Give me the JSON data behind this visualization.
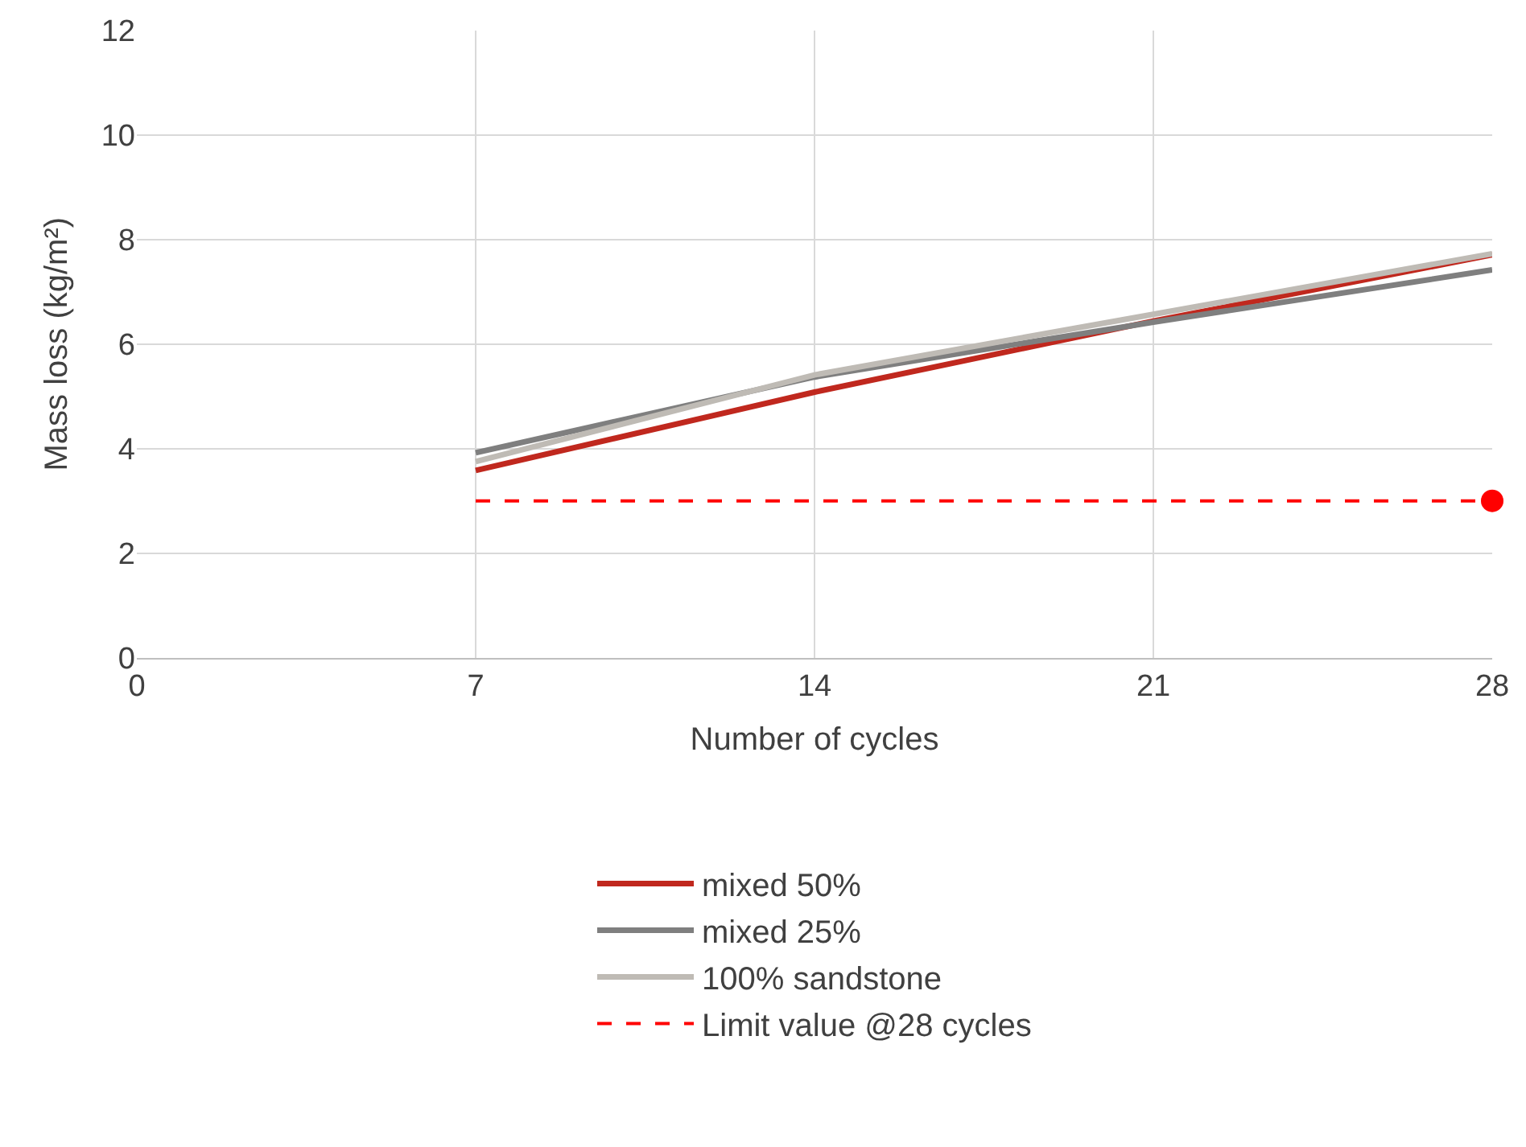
{
  "chart_data": {
    "type": "line",
    "xlabel": "Number of cycles",
    "ylabel": "Mass loss (kg/m²)",
    "x": [
      7,
      14,
      21,
      28
    ],
    "series": [
      {
        "name": "mixed 50%",
        "color": "#c0281e",
        "values": [
          3.58,
          5.08,
          6.44,
          7.71
        ]
      },
      {
        "name": "mixed 25%",
        "color": "#7f7f7f",
        "values": [
          3.92,
          5.37,
          6.42,
          7.42
        ]
      },
      {
        "name": "100% sandstone",
        "color": "#bfbbb5",
        "values": [
          3.75,
          5.41,
          6.57,
          7.73
        ]
      },
      {
        "name": "Limit value @28 cycles",
        "color": "#ff0000",
        "values": [
          3,
          3,
          3,
          3
        ],
        "line_style": "dashed"
      },
      {
        "type": "scatter",
        "color": "#ff0000",
        "values": [
          null,
          null,
          null,
          3
        ],
        "marker": "circle"
      }
    ],
    "xlim": [
      0,
      28
    ],
    "xticks": [
      0,
      7,
      14,
      21,
      28
    ],
    "ylim": [
      0,
      12
    ],
    "yticks": [
      0,
      2,
      4,
      6,
      8,
      10,
      12
    ],
    "grid": true,
    "legend": "bottom"
  }
}
